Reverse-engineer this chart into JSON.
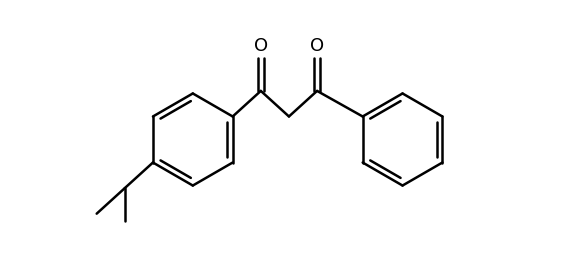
{
  "bg_color": "#ffffff",
  "line_color": "#000000",
  "line_width": 1.8,
  "figsize": [
    5.8,
    2.79
  ],
  "dpi": 100
}
